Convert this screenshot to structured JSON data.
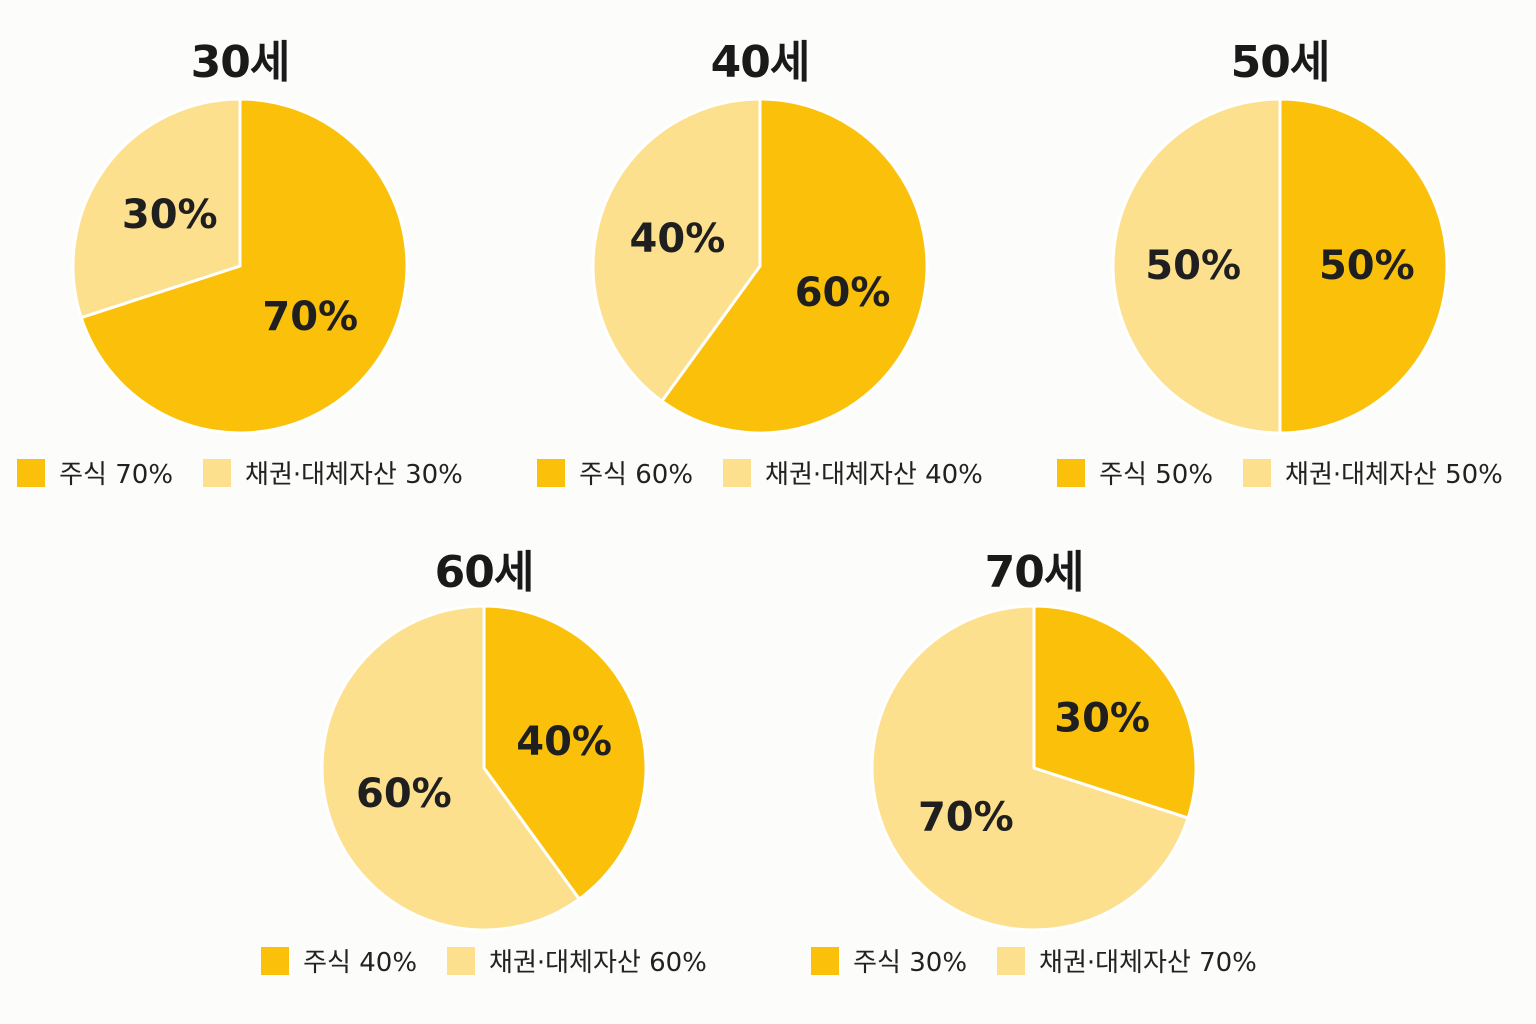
{
  "colors": {
    "stock": "#fbc10a",
    "bond": "#fce08e",
    "divider": "#ffffff"
  },
  "chart_data": [
    {
      "type": "pie",
      "title": "30세",
      "series": [
        {
          "name": "주식",
          "value": 70,
          "label": "70%",
          "color": "#fbc10a"
        },
        {
          "name": "채권·대체자산",
          "value": 30,
          "label": "30%",
          "color": "#fce08e"
        }
      ],
      "legend": [
        "주식 70%",
        "채권·대체자산 30%"
      ]
    },
    {
      "type": "pie",
      "title": "40세",
      "series": [
        {
          "name": "주식",
          "value": 60,
          "label": "60%",
          "color": "#fbc10a"
        },
        {
          "name": "채권·대체자산",
          "value": 40,
          "label": "40%",
          "color": "#fce08e"
        }
      ],
      "legend": [
        "주식 60%",
        "채권·대체자산 40%"
      ]
    },
    {
      "type": "pie",
      "title": "50세",
      "series": [
        {
          "name": "주식",
          "value": 50,
          "label": "50%",
          "color": "#fbc10a"
        },
        {
          "name": "채권·대체자산",
          "value": 50,
          "label": "50%",
          "color": "#fce08e"
        }
      ],
      "legend": [
        "주식 50%",
        "채권·대체자산 50%"
      ]
    },
    {
      "type": "pie",
      "title": "60세",
      "series": [
        {
          "name": "주식",
          "value": 40,
          "label": "40%",
          "color": "#fbc10a"
        },
        {
          "name": "채권·대체자산",
          "value": 60,
          "label": "60%",
          "color": "#fce08e"
        }
      ],
      "legend": [
        "주식 40%",
        "채권·대체자산 60%"
      ]
    },
    {
      "type": "pie",
      "title": "70세",
      "series": [
        {
          "name": "주식",
          "value": 30,
          "label": "30%",
          "color": "#fbc10a"
        },
        {
          "name": "채권·대체자산",
          "value": 70,
          "label": "70%",
          "color": "#fce08e"
        }
      ],
      "legend": [
        "주식 30%",
        "채권·대체자산 70%"
      ]
    }
  ]
}
